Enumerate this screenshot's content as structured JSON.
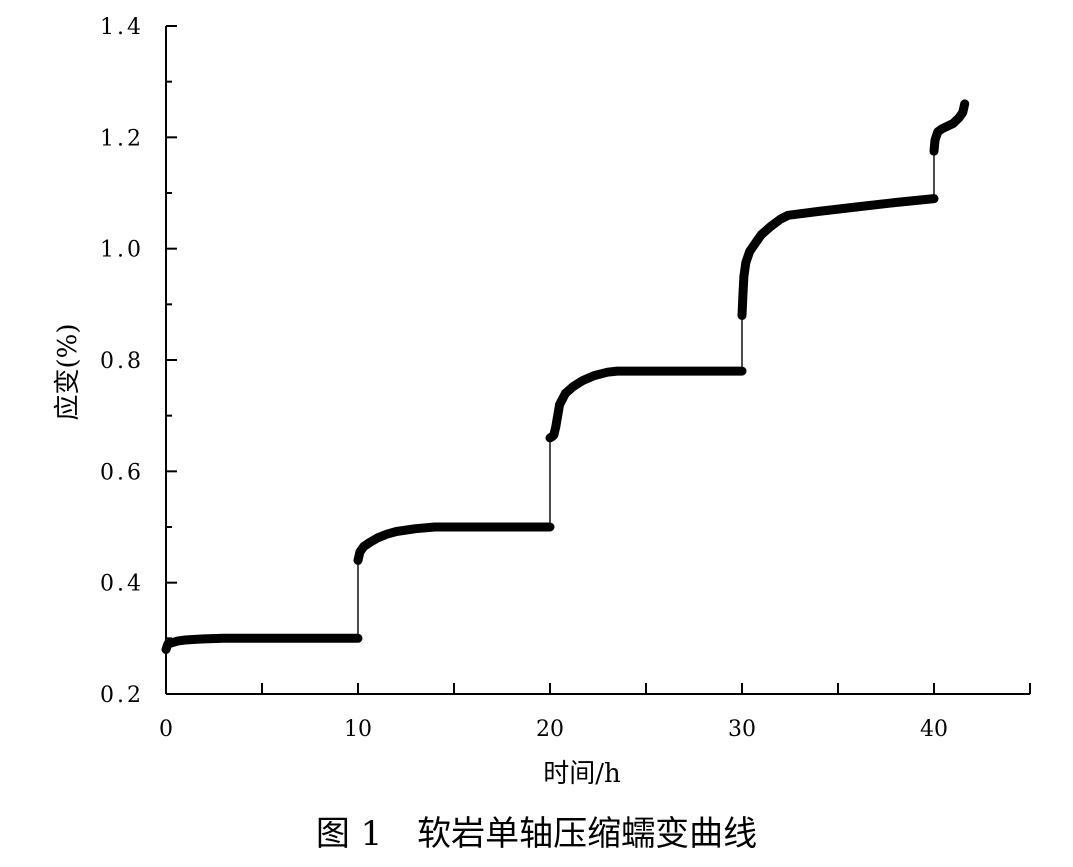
{
  "caption": {
    "figure_no": "图 1",
    "title": "软岩单轴压缩蠕变曲线"
  },
  "chart_data": {
    "type": "line",
    "xlabel": "时间/h",
    "ylabel": "应变(%)",
    "xlim": [
      0,
      45
    ],
    "ylim": [
      0.2,
      1.4
    ],
    "x_ticks": [
      0,
      10,
      20,
      30,
      40
    ],
    "x_minor_step": 5,
    "y_ticks": [
      "0.2",
      "0.4",
      "0.6",
      "0.8",
      "1.0",
      "1.2",
      "1.4"
    ],
    "y_minor_step": 0.1,
    "line_color": "#000000",
    "series": [
      {
        "x": [
          0.0,
          0.1,
          0.3,
          0.6,
          1.0,
          1.5,
          2.0,
          3.0,
          5.0,
          8.0,
          10.0,
          10.0,
          10.1,
          10.3,
          10.6,
          11.0,
          11.5,
          12.0,
          13.0,
          14.0,
          16.0,
          18.0,
          20.0,
          20.0,
          20.1,
          20.2,
          20.3,
          20.5,
          20.8,
          21.2,
          21.7,
          22.3,
          23.0,
          23.5,
          25.0,
          28.0,
          30.0,
          30.0,
          30.05,
          30.1,
          30.2,
          30.4,
          30.7,
          31.0,
          31.5,
          32.0,
          32.4,
          34.0,
          36.0,
          38.0,
          40.0,
          40.0,
          40.05,
          40.2,
          40.4,
          40.7,
          41.0,
          41.3,
          41.5,
          41.6
        ],
        "y": [
          0.28,
          0.29,
          0.292,
          0.295,
          0.297,
          0.298,
          0.299,
          0.3,
          0.3,
          0.3,
          0.3,
          0.44,
          0.455,
          0.465,
          0.472,
          0.48,
          0.487,
          0.492,
          0.497,
          0.5,
          0.5,
          0.5,
          0.5,
          0.66,
          0.662,
          0.665,
          0.68,
          0.72,
          0.74,
          0.752,
          0.763,
          0.772,
          0.778,
          0.78,
          0.78,
          0.78,
          0.78,
          0.88,
          0.92,
          0.95,
          0.975,
          0.995,
          1.01,
          1.025,
          1.04,
          1.053,
          1.06,
          1.067,
          1.075,
          1.083,
          1.09,
          1.175,
          1.195,
          1.21,
          1.215,
          1.22,
          1.225,
          1.235,
          1.245,
          1.26
        ]
      }
    ]
  }
}
